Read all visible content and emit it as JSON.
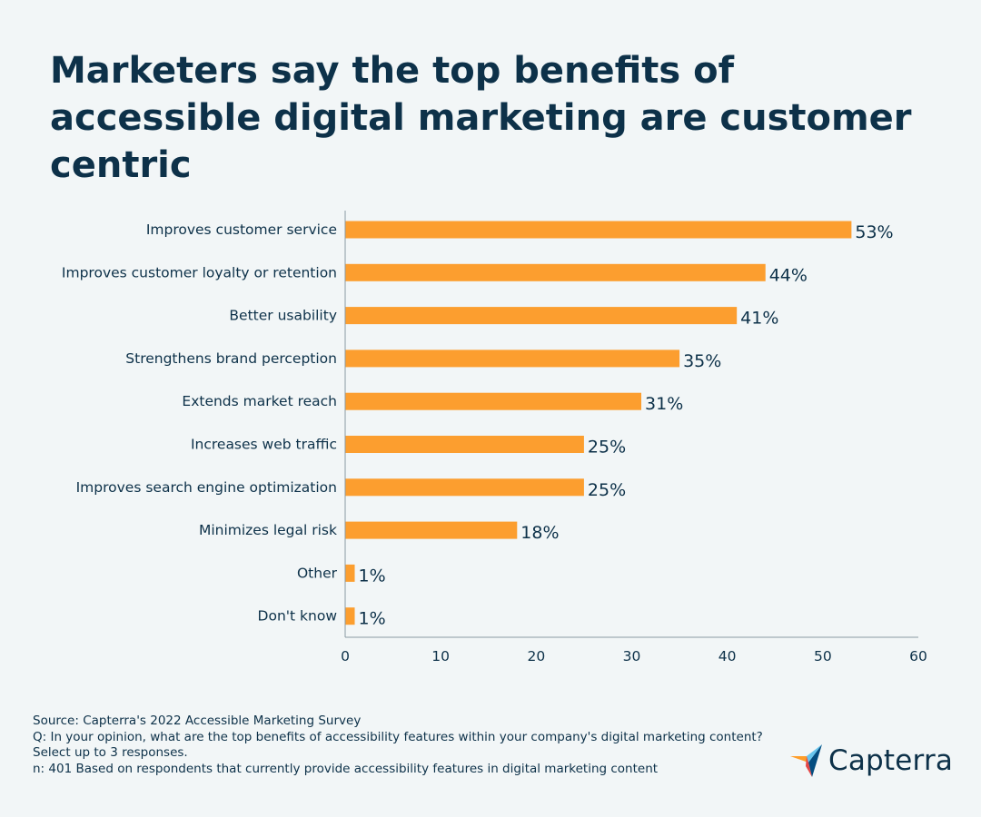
{
  "chart_data": {
    "type": "bar",
    "orientation": "horizontal",
    "title": "Marketers say the top benefits of accessible digital marketing are customer centric",
    "categories": [
      "Improves customer service",
      "Improves customer loyalty or retention",
      "Better usability",
      "Strengthens brand perception",
      "Extends market reach",
      "Increases web traffic",
      "Improves search engine optimization",
      "Minimizes legal risk",
      "Other",
      "Don't know"
    ],
    "values": [
      53,
      44,
      41,
      35,
      31,
      25,
      25,
      18,
      1,
      1
    ],
    "data_labels": [
      "53%",
      "44%",
      "41%",
      "35%",
      "31%",
      "25%",
      "25%",
      "18%",
      "1%",
      "1%"
    ],
    "xlim": [
      0,
      60
    ],
    "xticks": [
      "0",
      "10",
      "20",
      "30",
      "40",
      "50",
      "60"
    ],
    "xlabel": "",
    "ylabel": "",
    "grid": false,
    "bar_color": "#fc9e2f"
  },
  "footer": {
    "source": "Source: Capterra's 2022 Accessible Marketing Survey",
    "question": "Q: In your opinion, what are the top benefits of accessibility features within your company's digital marketing content?",
    "instruction": "Select up to 3 responses.",
    "sample": "n: 401 Based on respondents that currently provide accessibility features in digital marketing content"
  },
  "logo": {
    "name": "Capterra",
    "colors": [
      "#ff9d28",
      "#68c5ed",
      "#044d80",
      "#e54747"
    ]
  }
}
